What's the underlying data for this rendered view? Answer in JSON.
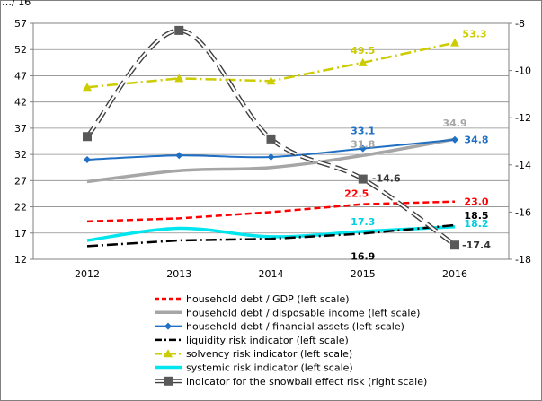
{
  "chart_data": {
    "type": "line",
    "title": "",
    "title_fragment": "…/ 16",
    "x": [
      "2012",
      "2013",
      "2014",
      "2015",
      "2016"
    ],
    "left_axis": {
      "min": 12,
      "max": 57,
      "ticks": [
        "12",
        "17",
        "22",
        "27",
        "32",
        "37",
        "42",
        "47",
        "52",
        "57"
      ]
    },
    "right_axis": {
      "min": -18,
      "max": -8,
      "ticks": [
        "-18",
        "-16",
        "-14",
        "-12",
        "-10",
        "-8"
      ]
    },
    "grid": "horizontal",
    "legend_position": "bottom",
    "series": [
      {
        "name": "household debt / GDP (left scale)",
        "axis": "left",
        "color": "#ff0000",
        "style": "dashed",
        "marker": "none",
        "values": [
          19.2,
          19.8,
          21.0,
          22.5,
          23.0
        ]
      },
      {
        "name": "household debt / disposable income (left scale)",
        "axis": "left",
        "color": "#a6a6a6",
        "style": "solid-thick",
        "marker": "none",
        "values": [
          26.8,
          28.9,
          29.5,
          31.8,
          34.9
        ]
      },
      {
        "name": "household debt / financial assets (left scale)",
        "axis": "left",
        "color": "#1f6fc4",
        "style": "solid",
        "marker": "diamond",
        "values": [
          31.0,
          31.8,
          31.5,
          33.1,
          34.8
        ]
      },
      {
        "name": "liquidity risk indicator (left scale)",
        "axis": "left",
        "color": "#000000",
        "style": "dashdot",
        "marker": "none",
        "values": [
          14.5,
          15.6,
          15.9,
          16.9,
          18.5
        ]
      },
      {
        "name": "solvency risk indicator (left scale)",
        "axis": "left",
        "color": "#cccc00",
        "style": "dashdot",
        "marker": "triangle",
        "values": [
          44.8,
          46.5,
          46.0,
          49.5,
          53.3
        ]
      },
      {
        "name": "systemic risk indicator (left scale)",
        "axis": "left",
        "color": "#00e5ee",
        "style": "solid-thick",
        "marker": "none",
        "values": [
          15.6,
          17.9,
          16.3,
          17.3,
          18.2
        ]
      },
      {
        "name": "indicator for the snowball effect risk (right scale)",
        "axis": "right",
        "color": "#808080",
        "style": "outlined-dashed",
        "marker": "square",
        "values": [
          -12.8,
          -8.3,
          -12.9,
          -14.6,
          -17.4
        ]
      }
    ],
    "data_labels": [
      {
        "series": 4,
        "point": 3,
        "text": "49.5",
        "color": "#cccc00"
      },
      {
        "series": 4,
        "point": 4,
        "text": "53.3",
        "color": "#cccc00"
      },
      {
        "series": 1,
        "point": 4,
        "text": "34.9",
        "color": "#a6a6a6"
      },
      {
        "series": 2,
        "point": 3,
        "text": "33.1",
        "color": "#1f6fc4"
      },
      {
        "series": 2,
        "point": 4,
        "text": "34.8",
        "color": "#1f6fc4"
      },
      {
        "series": 1,
        "point": 3,
        "text": "31.8",
        "color": "#a6a6a6"
      },
      {
        "series": 0,
        "point": 3,
        "text": "22.5",
        "color": "#ff0000"
      },
      {
        "series": 6,
        "point": 3,
        "text": "-14.6",
        "color": "#333333"
      },
      {
        "series": 0,
        "point": 4,
        "text": "23.0",
        "color": "#ff0000"
      },
      {
        "series": 3,
        "point": 4,
        "text": "18.5",
        "color": "#000000"
      },
      {
        "series": 5,
        "point": 3,
        "text": "17.3",
        "color": "#00cfe0"
      },
      {
        "series": 5,
        "point": 4,
        "text": "18.2",
        "color": "#00cfe0"
      },
      {
        "series": 3,
        "point": 3,
        "text": "16.9",
        "color": "#000000"
      },
      {
        "series": 6,
        "point": 4,
        "text": "-17.4",
        "color": "#333333"
      }
    ]
  }
}
